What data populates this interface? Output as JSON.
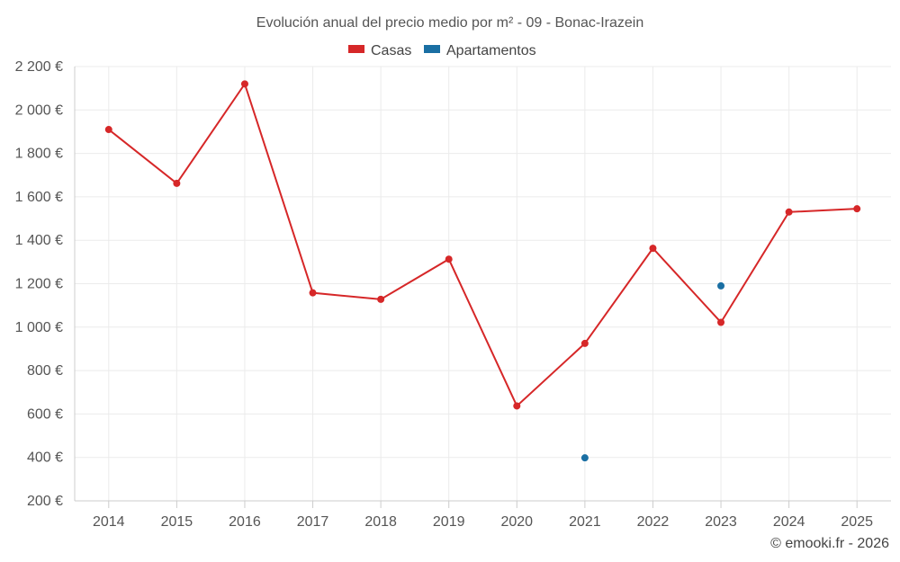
{
  "chart_data": {
    "type": "line",
    "title": "Evolución anual del precio medio por m² - 09 - Bonac-Irazein",
    "categories": [
      "2014",
      "2015",
      "2016",
      "2017",
      "2018",
      "2019",
      "2020",
      "2021",
      "2022",
      "2023",
      "2024",
      "2025"
    ],
    "y_ticks": [
      "200 €",
      "400 €",
      "600 €",
      "800 €",
      "1 000 €",
      "1 200 €",
      "1 400 €",
      "1 600 €",
      "1 800 €",
      "2 000 €",
      "2 200 €"
    ],
    "ylim": [
      200,
      2200
    ],
    "grid": true,
    "legend_position": "top-center",
    "series": [
      {
        "name": "Casas",
        "color": "#d62728",
        "values": [
          1910,
          1662,
          2120,
          1158,
          1128,
          1313,
          637,
          925,
          1363,
          1022,
          1530,
          1545
        ]
      },
      {
        "name": "Apartamentos",
        "color": "#1a6fa3",
        "values": [
          null,
          null,
          null,
          null,
          null,
          null,
          null,
          398,
          null,
          1190,
          null,
          null
        ]
      }
    ]
  },
  "credit": "© emooki.fr - 2026"
}
